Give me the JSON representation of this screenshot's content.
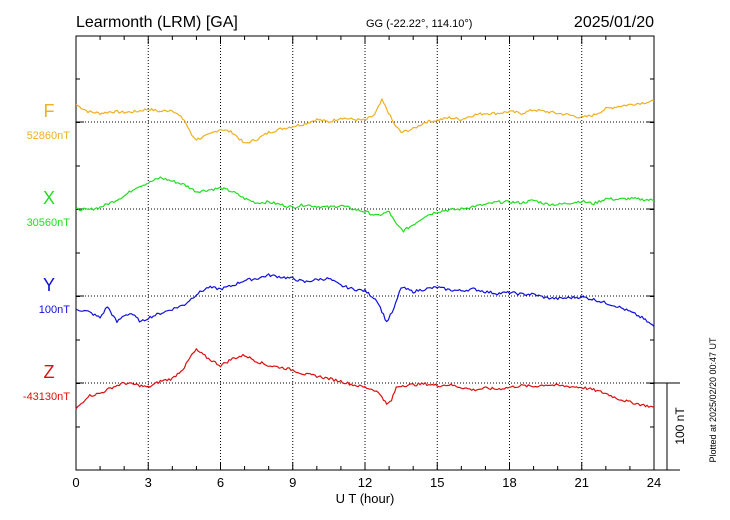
{
  "chart_data": {
    "type": "line",
    "title": "Learmonth (LRM)  [GA]",
    "coords": "GG (-22.22°, 114.10°)",
    "date": "2025/01/20",
    "xlabel": "U T (hour)",
    "xlim": [
      0,
      24
    ],
    "xticks": [
      "0",
      "3",
      "6",
      "9",
      "12",
      "15",
      "18",
      "21",
      "24"
    ],
    "grid": true,
    "scale_bar": "100 nT",
    "plotted_note": "Plotted at 2025/02/20 00:47 UT",
    "series": [
      {
        "name": "F",
        "baseline": "52860nT",
        "color": "#f0b020",
        "x": [
          0,
          0.5,
          1,
          1.5,
          2,
          2.5,
          3,
          3.5,
          4,
          4.5,
          4.8,
          5,
          5.5,
          6,
          6.5,
          7,
          7.5,
          8,
          8.5,
          9,
          9.5,
          10,
          10.5,
          11,
          11.5,
          12,
          12.4,
          12.7,
          12.9,
          13.2,
          13.5,
          14,
          14.5,
          15,
          15.5,
          16,
          16.5,
          17,
          17.5,
          18,
          18.5,
          19,
          19.5,
          20,
          20.5,
          21,
          21.5,
          22,
          22.5,
          23,
          23.5,
          24
        ],
        "values": [
          20,
          12,
          10,
          12,
          11,
          12,
          15,
          12,
          14,
          2,
          -15,
          -20,
          -15,
          -8,
          -12,
          -25,
          -20,
          -12,
          -8,
          -5,
          -2,
          3,
          0,
          5,
          3,
          2,
          8,
          25,
          15,
          -2,
          -12,
          -8,
          0,
          2,
          5,
          3,
          8,
          10,
          10,
          12,
          10,
          14,
          12,
          10,
          8,
          5,
          8,
          15,
          18,
          20,
          22,
          24
        ]
      },
      {
        "name": "X",
        "baseline": "30560nT",
        "color": "#22dd22",
        "x": [
          0,
          0.5,
          1,
          1.5,
          2,
          2.5,
          3,
          3.5,
          4,
          4.5,
          5,
          5.5,
          6,
          6.5,
          7,
          7.5,
          8,
          8.5,
          9,
          9.5,
          10,
          10.5,
          11,
          11.5,
          12,
          12.5,
          13,
          13.3,
          13.6,
          14,
          14.5,
          15,
          15.5,
          16,
          16.5,
          17,
          17.5,
          18,
          18.5,
          19,
          19.5,
          20,
          20.5,
          21,
          21.5,
          22,
          22.5,
          23,
          23.5,
          24
        ],
        "values": [
          0,
          -1,
          2,
          8,
          15,
          25,
          30,
          36,
          32,
          28,
          20,
          22,
          24,
          20,
          12,
          7,
          8,
          5,
          2,
          5,
          3,
          2,
          4,
          0,
          -3,
          -8,
          -3,
          -18,
          -25,
          -18,
          -8,
          -3,
          -1,
          0,
          3,
          5,
          8,
          8,
          7,
          10,
          6,
          5,
          7,
          9,
          6,
          12,
          11,
          12,
          11,
          10
        ]
      },
      {
        "name": "Y",
        "baseline": "100nT",
        "color": "#1010dd",
        "x": [
          0,
          0.5,
          1,
          1.3,
          1.7,
          2,
          2.3,
          2.7,
          3,
          3.5,
          4,
          4.5,
          5,
          5.5,
          6,
          6.5,
          7,
          7.5,
          8,
          8.5,
          9,
          9.5,
          10,
          10.5,
          11,
          11.5,
          12,
          12.5,
          12.9,
          13.2,
          13.5,
          14,
          14.5,
          15,
          15.5,
          16,
          16.5,
          17,
          17.5,
          18,
          18.5,
          19,
          19.5,
          20,
          20.5,
          21,
          21.5,
          22,
          22.5,
          23,
          23.5,
          24
        ],
        "values": [
          -15,
          -18,
          -25,
          -12,
          -30,
          -22,
          -20,
          -30,
          -25,
          -20,
          -15,
          -10,
          2,
          10,
          8,
          12,
          18,
          20,
          24,
          22,
          20,
          16,
          19,
          20,
          12,
          8,
          6,
          -5,
          -30,
          -15,
          10,
          5,
          8,
          10,
          7,
          6,
          8,
          5,
          3,
          4,
          2,
          2,
          -2,
          -3,
          -2,
          -1,
          -4,
          -8,
          -12,
          -18,
          -25,
          -35
        ]
      },
      {
        "name": "Z",
        "baseline": "-43130nT",
        "color": "#dd1010",
        "x": [
          0,
          0.5,
          1,
          1.5,
          2,
          2.5,
          3,
          3.5,
          4,
          4.5,
          4.8,
          5,
          5.5,
          6,
          6.5,
          7,
          7.5,
          8,
          8.5,
          9,
          9.5,
          10,
          10.5,
          11,
          11.5,
          12,
          12.4,
          12.7,
          12.9,
          13.1,
          13.3,
          13.5,
          14,
          14.5,
          15,
          15.5,
          16,
          16.5,
          17,
          17.5,
          18,
          18.5,
          19,
          19.5,
          20,
          20.5,
          21,
          21.5,
          22,
          22.5,
          23,
          23.5,
          24
        ],
        "values": [
          -30,
          -15,
          -12,
          -5,
          0,
          -2,
          -5,
          2,
          5,
          18,
          32,
          38,
          28,
          20,
          28,
          32,
          25,
          20,
          18,
          15,
          10,
          8,
          5,
          2,
          -2,
          -5,
          -8,
          -15,
          -25,
          -20,
          -5,
          -3,
          -2,
          -1,
          -3,
          -2,
          -5,
          -8,
          -6,
          -7,
          -5,
          -3,
          -4,
          -2,
          -3,
          -4,
          -5,
          -8,
          -12,
          -18,
          -22,
          -25,
          -28
        ]
      }
    ]
  }
}
